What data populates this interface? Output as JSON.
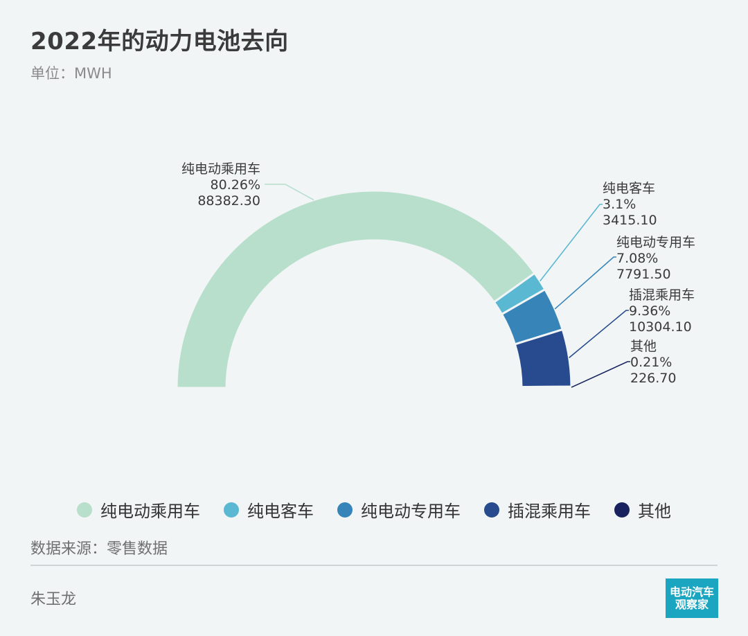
{
  "title": "2022年的动力电池去向",
  "subtitle": "单位：MWH",
  "source": "数据来源：零售数据",
  "author": "朱玉龙",
  "logo": {
    "line1": "电动汽车",
    "line2": "观察家",
    "color": "#1aa6c0"
  },
  "chart_data": {
    "type": "pie",
    "variant": "half-donut",
    "unit": "MWH",
    "legend_position": "bottom",
    "slices": [
      {
        "name": "纯电动乘用车",
        "percent_label": "80.26%",
        "value_label": "88382.30",
        "percent": 80.26,
        "value": 88382.3,
        "color": "#b7dfcb"
      },
      {
        "name": "纯电客车",
        "percent_label": "3.1%",
        "value_label": "3415.10",
        "percent": 3.1,
        "value": 3415.1,
        "color": "#5bb8d3"
      },
      {
        "name": "纯电动专用车",
        "percent_label": "7.08%",
        "value_label": "7791.50",
        "percent": 7.08,
        "value": 7791.5,
        "color": "#3784b9"
      },
      {
        "name": "插混乘用车",
        "percent_label": "9.36%",
        "value_label": "10304.10",
        "percent": 9.36,
        "value": 10304.1,
        "color": "#274b8e"
      },
      {
        "name": "其他",
        "percent_label": "0.21%",
        "value_label": "226.70",
        "percent": 0.21,
        "value": 226.7,
        "color": "#19225f"
      }
    ]
  }
}
